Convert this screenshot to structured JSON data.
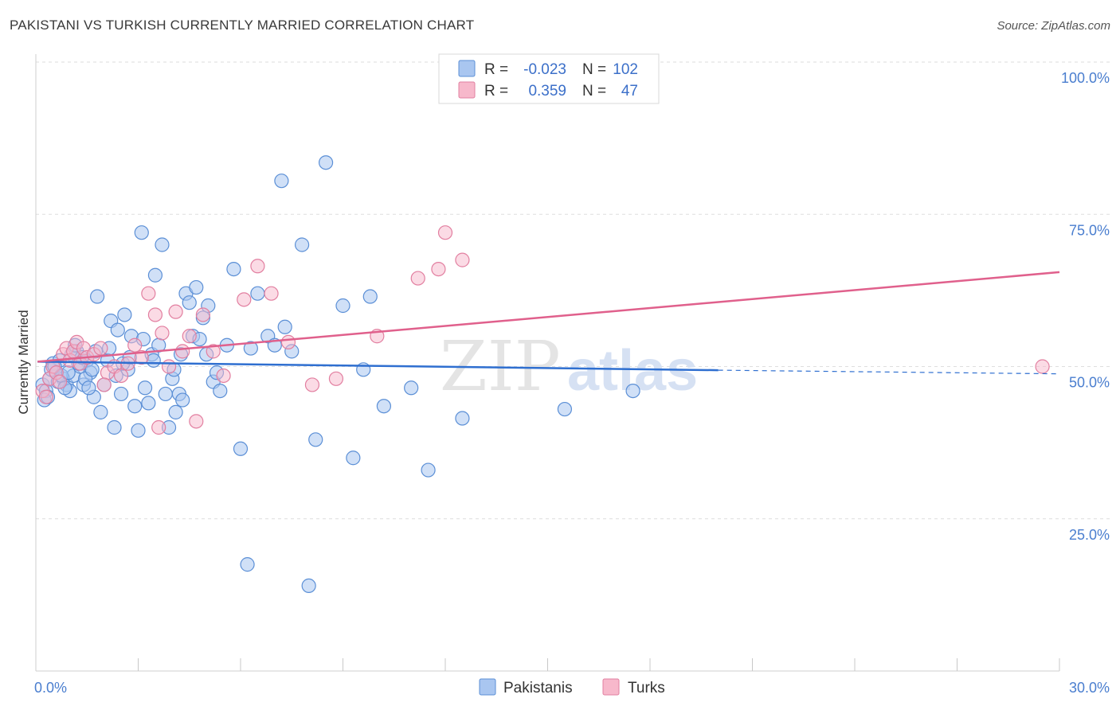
{
  "header": {
    "title": "PAKISTANI VS TURKISH CURRENTLY MARRIED CORRELATION CHART",
    "source": "Source: ZipAtlas.com"
  },
  "watermark": {
    "zip": "ZIP",
    "atlas": "atlas"
  },
  "legend": {
    "rows": [
      {
        "r_label": "R =",
        "r_value": "-0.023",
        "n_label": "N =",
        "n_value": "102",
        "color": "#a9c6f0",
        "stroke": "#5b8fd6"
      },
      {
        "r_label": "R =",
        "r_value": "0.359",
        "n_label": "N =",
        "n_value": "47",
        "color": "#f7b8cb",
        "stroke": "#e27fa0"
      }
    ],
    "bottom": [
      "Pakistanis",
      "Turks"
    ]
  },
  "colors": {
    "blue_fill": "#a9c6f0",
    "blue_stroke": "#5b8fd6",
    "blue_line": "#2f6fd0",
    "pink_fill": "#f7b8cb",
    "pink_stroke": "#e27fa0",
    "pink_line": "#e0608c",
    "tick_color": "#4a7ecf"
  },
  "chart_data": {
    "type": "scatter",
    "title": "PAKISTANI VS TURKISH CURRENTLY MARRIED CORRELATION CHART",
    "xlabel": "",
    "ylabel": "Currently Married",
    "xlim": [
      0,
      30
    ],
    "ylim": [
      0,
      100
    ],
    "x_tick_labels": [
      "0.0%",
      "30.0%"
    ],
    "y_tick_labels": [
      "100.0%",
      "75.0%",
      "50.0%",
      "25.0%"
    ],
    "y_ticks": [
      100,
      75,
      50,
      25
    ],
    "grid": true,
    "legend_position": "top-center",
    "series": [
      {
        "name": "Pakistanis",
        "r": -0.023,
        "n": 102,
        "trend": {
          "x0": 0.05,
          "y0": 50.8,
          "x1": 20.0,
          "y1": 49.4,
          "dash_to_x": 30.0,
          "dash_to_y": 48.8
        },
        "points": [
          [
            0.2,
            47.0
          ],
          [
            0.3,
            46.0
          ],
          [
            0.4,
            48.0
          ],
          [
            0.5,
            50.5
          ],
          [
            0.6,
            49.0
          ],
          [
            0.7,
            51.0
          ],
          [
            0.8,
            48.0
          ],
          [
            0.9,
            47.0
          ],
          [
            1.0,
            46.0
          ],
          [
            1.1,
            48.5
          ],
          [
            1.2,
            52.5
          ],
          [
            1.3,
            50.0
          ],
          [
            1.4,
            47.0
          ],
          [
            1.5,
            51.0
          ],
          [
            1.6,
            49.0
          ],
          [
            1.7,
            45.0
          ],
          [
            1.8,
            61.5
          ],
          [
            1.9,
            42.5
          ],
          [
            2.0,
            47.0
          ],
          [
            2.1,
            51.0
          ],
          [
            2.2,
            57.5
          ],
          [
            2.3,
            40.0
          ],
          [
            2.4,
            56.0
          ],
          [
            2.5,
            45.5
          ],
          [
            2.6,
            58.5
          ],
          [
            2.7,
            49.5
          ],
          [
            2.8,
            55.0
          ],
          [
            2.9,
            43.5
          ],
          [
            3.0,
            39.5
          ],
          [
            3.1,
            72.0
          ],
          [
            3.2,
            46.5
          ],
          [
            3.3,
            44.0
          ],
          [
            3.4,
            52.0
          ],
          [
            3.5,
            65.0
          ],
          [
            3.6,
            53.5
          ],
          [
            3.7,
            70.0
          ],
          [
            3.8,
            45.5
          ],
          [
            3.9,
            40.0
          ],
          [
            4.0,
            48.0
          ],
          [
            4.1,
            42.5
          ],
          [
            4.2,
            45.5
          ],
          [
            4.3,
            44.5
          ],
          [
            4.4,
            62.0
          ],
          [
            4.5,
            60.5
          ],
          [
            4.6,
            55.0
          ],
          [
            4.7,
            63.0
          ],
          [
            4.8,
            54.5
          ],
          [
            4.9,
            58.0
          ],
          [
            5.0,
            52.0
          ],
          [
            5.2,
            47.5
          ],
          [
            5.4,
            46.0
          ],
          [
            5.6,
            53.5
          ],
          [
            5.8,
            66.0
          ],
          [
            6.0,
            36.5
          ],
          [
            6.2,
            17.5
          ],
          [
            6.5,
            62.0
          ],
          [
            6.8,
            55.0
          ],
          [
            7.0,
            53.5
          ],
          [
            7.2,
            80.5
          ],
          [
            7.5,
            52.5
          ],
          [
            7.8,
            70.0
          ],
          [
            8.0,
            14.0
          ],
          [
            8.2,
            38.0
          ],
          [
            8.5,
            83.5
          ],
          [
            9.0,
            60.0
          ],
          [
            9.3,
            35.0
          ],
          [
            9.6,
            49.5
          ],
          [
            9.8,
            61.5
          ],
          [
            10.2,
            43.5
          ],
          [
            11.0,
            46.5
          ],
          [
            11.5,
            33.0
          ],
          [
            12.5,
            41.5
          ],
          [
            15.5,
            43.0
          ],
          [
            17.5,
            46.0
          ],
          [
            0.25,
            44.5
          ],
          [
            0.35,
            45.0
          ],
          [
            0.45,
            49.5
          ],
          [
            0.55,
            50.0
          ],
          [
            0.65,
            47.5
          ],
          [
            0.75,
            48.5
          ],
          [
            0.85,
            46.5
          ],
          [
            0.95,
            49.0
          ],
          [
            1.05,
            52.0
          ],
          [
            1.15,
            53.5
          ],
          [
            1.25,
            50.5
          ],
          [
            1.35,
            51.5
          ],
          [
            1.45,
            48.0
          ],
          [
            1.55,
            46.5
          ],
          [
            1.65,
            49.5
          ],
          [
            1.75,
            52.5
          ],
          [
            2.15,
            53.0
          ],
          [
            2.35,
            48.5
          ],
          [
            2.55,
            50.5
          ],
          [
            2.75,
            51.5
          ],
          [
            3.15,
            54.5
          ],
          [
            3.45,
            51.0
          ],
          [
            4.05,
            49.5
          ],
          [
            4.25,
            52.0
          ],
          [
            5.05,
            60.0
          ],
          [
            5.3,
            49.0
          ],
          [
            6.3,
            53.0
          ],
          [
            7.3,
            56.5
          ]
        ]
      },
      {
        "name": "Turks",
        "r": 0.359,
        "n": 47,
        "trend": {
          "x0": 0.05,
          "y0": 50.8,
          "x1": 30.0,
          "y1": 65.5
        },
        "points": [
          [
            0.2,
            46.0
          ],
          [
            0.3,
            45.0
          ],
          [
            0.4,
            48.0
          ],
          [
            0.5,
            50.0
          ],
          [
            0.6,
            49.0
          ],
          [
            0.7,
            47.5
          ],
          [
            0.8,
            52.0
          ],
          [
            0.9,
            53.0
          ],
          [
            1.0,
            51.0
          ],
          [
            1.1,
            52.5
          ],
          [
            1.2,
            54.0
          ],
          [
            1.3,
            50.5
          ],
          [
            1.4,
            53.0
          ],
          [
            1.5,
            51.5
          ],
          [
            1.7,
            52.0
          ],
          [
            1.9,
            53.0
          ],
          [
            2.1,
            49.0
          ],
          [
            2.3,
            50.0
          ],
          [
            2.5,
            48.5
          ],
          [
            2.7,
            50.5
          ],
          [
            2.9,
            53.5
          ],
          [
            3.1,
            51.5
          ],
          [
            3.3,
            62.0
          ],
          [
            3.5,
            58.5
          ],
          [
            3.7,
            55.5
          ],
          [
            3.9,
            50.0
          ],
          [
            4.1,
            59.0
          ],
          [
            4.3,
            52.5
          ],
          [
            4.5,
            55.0
          ],
          [
            4.7,
            41.0
          ],
          [
            4.9,
            58.5
          ],
          [
            5.2,
            52.5
          ],
          [
            5.5,
            48.5
          ],
          [
            6.1,
            61.0
          ],
          [
            6.5,
            66.5
          ],
          [
            6.9,
            62.0
          ],
          [
            7.4,
            54.0
          ],
          [
            8.1,
            47.0
          ],
          [
            8.8,
            48.0
          ],
          [
            10.0,
            55.0
          ],
          [
            11.2,
            64.5
          ],
          [
            11.8,
            66.0
          ],
          [
            12.0,
            72.0
          ],
          [
            12.5,
            67.5
          ],
          [
            29.5,
            50.0
          ],
          [
            3.6,
            40.0
          ],
          [
            2.0,
            47.0
          ]
        ]
      }
    ]
  }
}
